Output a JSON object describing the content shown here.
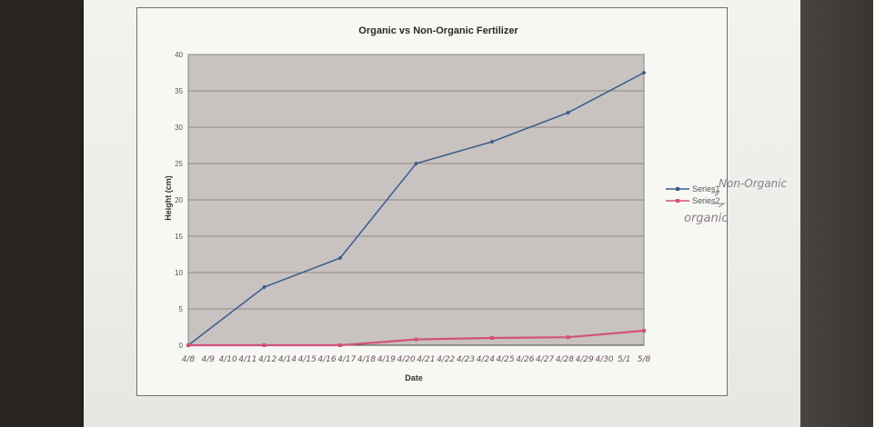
{
  "chart_data": {
    "type": "line",
    "title": "Organic vs Non-Organic Fertilizer",
    "xlabel": "Date",
    "ylabel": "Height (cm)",
    "ylim": [
      0,
      40
    ],
    "yticks": [
      "0",
      "5",
      "10",
      "15",
      "20",
      "25",
      "30",
      "35",
      "40"
    ],
    "x_tick_labels_handwritten": [
      "4/8",
      "4/9",
      "4/10",
      "4/11",
      "4/12",
      "4/14",
      "4/15",
      "4/16",
      "4/17",
      "4/18",
      "4/19",
      "4/20",
      "4/21",
      "4/22",
      "4/23",
      "4/24",
      "4/25",
      "4/26",
      "4/27",
      "4/28",
      "4/29",
      "4/30",
      "5/1",
      "5/8"
    ],
    "x": [
      "4/8",
      "4/12",
      "4/17",
      "4/21",
      "4/25",
      "4/29",
      "5/8"
    ],
    "series": [
      {
        "name": "Series1",
        "color": "#3b5a8c",
        "values": [
          0,
          8,
          12,
          25,
          28,
          32,
          37.5
        ]
      },
      {
        "name": "Series2",
        "color": "#d0527d",
        "values": [
          0,
          0,
          0,
          0.8,
          1,
          1.1,
          2
        ]
      }
    ],
    "legend_position": "right",
    "legend_handwritten": [
      "Non-Organic",
      "organic"
    ],
    "grid": true,
    "plot_background": "#c8c3c0"
  }
}
